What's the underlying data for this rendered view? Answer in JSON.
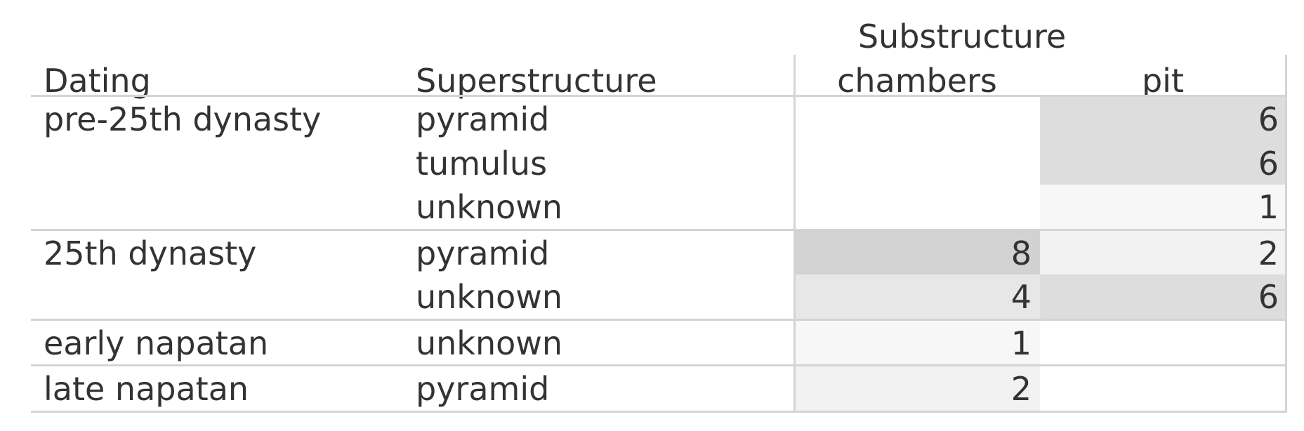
{
  "chart_data": {
    "type": "table",
    "header": {
      "group_label": "Substructure",
      "row_headers": [
        "Dating",
        "Superstructure"
      ],
      "columns": [
        "chambers",
        "pit"
      ]
    },
    "groups": [
      {
        "dating": "pre-25th dynasty",
        "rows": [
          {
            "superstructure": "pyramid",
            "values": [
              null,
              6
            ]
          },
          {
            "superstructure": "tumulus",
            "values": [
              null,
              6
            ]
          },
          {
            "superstructure": "unknown",
            "values": [
              null,
              1
            ]
          }
        ]
      },
      {
        "dating": "25th dynasty",
        "rows": [
          {
            "superstructure": "pyramid",
            "values": [
              8,
              2
            ]
          },
          {
            "superstructure": "unknown",
            "values": [
              4,
              6
            ]
          }
        ]
      },
      {
        "dating": "early napatan",
        "rows": [
          {
            "superstructure": "unknown",
            "values": [
              1,
              null
            ]
          }
        ]
      },
      {
        "dating": "late napatan",
        "rows": [
          {
            "superstructure": "pyramid",
            "values": [
              2,
              null
            ]
          }
        ]
      }
    ],
    "shading": {
      "low": "#f7f7f7",
      "high": "#d2d2d2",
      "min": 1,
      "max": 8
    }
  }
}
